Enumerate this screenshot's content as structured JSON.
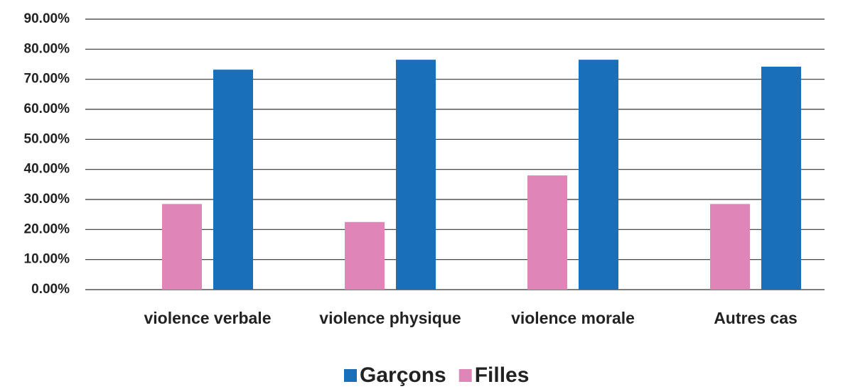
{
  "chart_data": {
    "type": "bar",
    "categories": [
      "violence verbale",
      "violence physique",
      "violence morale",
      "Autres cas"
    ],
    "series": [
      {
        "name": "Garçons",
        "color": "#1a6fba",
        "values": [
          73.2,
          76.5,
          76.5,
          74.2
        ]
      },
      {
        "name": "Filles",
        "color": "#df86b8",
        "values": [
          28.5,
          22.5,
          38,
          28.5
        ]
      }
    ],
    "ylim": [
      0,
      90
    ],
    "yticks": [
      {
        "value": 0,
        "label": "0.00%"
      },
      {
        "value": 10,
        "label": "10.00%"
      },
      {
        "value": 20,
        "label": "20.00%"
      },
      {
        "value": 30,
        "label": "30.00%"
      },
      {
        "value": 40,
        "label": "40.00%"
      },
      {
        "value": 50,
        "label": "50.00%"
      },
      {
        "value": 60,
        "label": "60.00%"
      },
      {
        "value": 70,
        "label": "70.00%"
      },
      {
        "value": 80,
        "label": "80.00%"
      },
      {
        "value": 90,
        "label": "90.00%"
      }
    ],
    "grid": true,
    "legend": "bottom"
  }
}
